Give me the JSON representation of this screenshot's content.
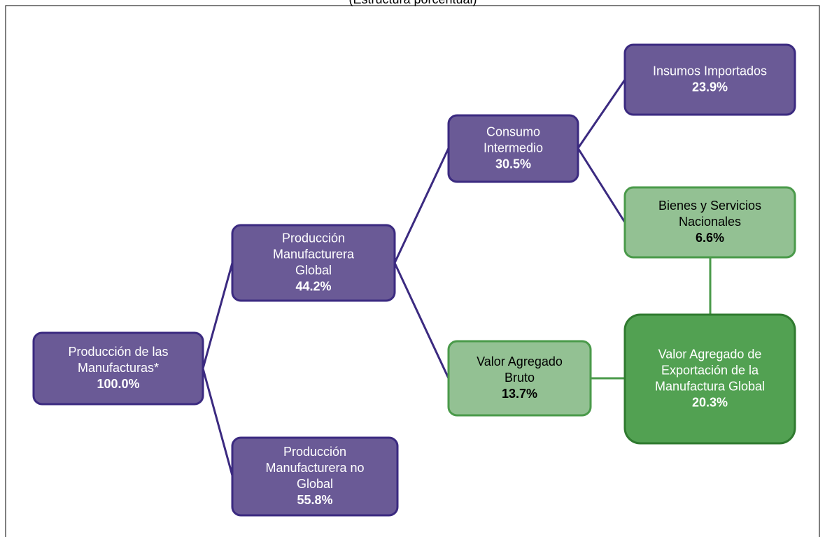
{
  "header": {
    "subtitle": "(Estructura porcentual)"
  },
  "nodes": [
    {
      "lines": [
        "Producción de las",
        "Manufacturas*"
      ],
      "value": "100.0%"
    },
    {
      "lines": [
        "Producción",
        "Manufacturera",
        "Global"
      ],
      "value": "44.2%"
    },
    {
      "lines": [
        "Producción",
        "Manufacturera  no",
        "Global"
      ],
      "value": "55.8%"
    },
    {
      "lines": [
        "Consumo",
        "Intermedio"
      ],
      "value": "30.5%"
    },
    {
      "lines": [
        "Valor Agregado",
        "Bruto"
      ],
      "value": "13.7%"
    },
    {
      "lines": [
        "Insumos  Importados"
      ],
      "value": "23.9%"
    },
    {
      "lines": [
        "Bienes y  Servicios",
        "Nacionales"
      ],
      "value": "6.6%"
    },
    {
      "lines": [
        "Valor Agregado de",
        "Exportación de la",
        "Manufactura  Global"
      ],
      "value": "20.3%"
    }
  ]
}
